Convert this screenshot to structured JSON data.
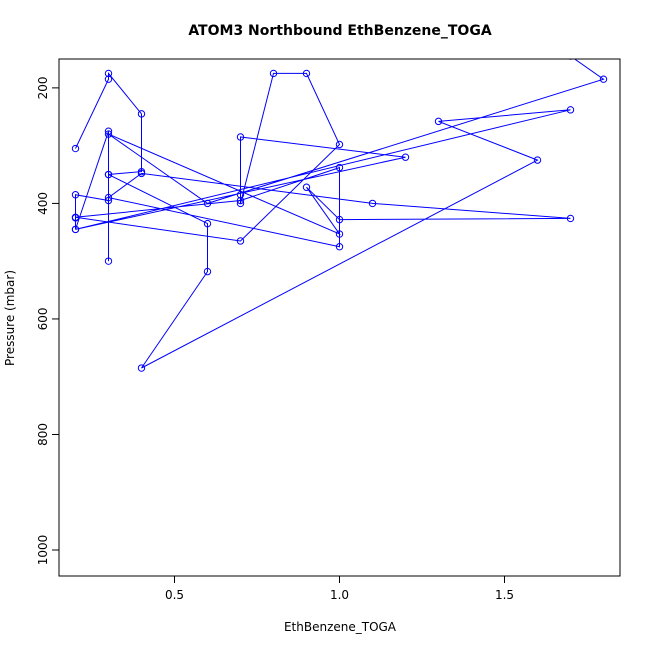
{
  "chart_data": {
    "type": "line",
    "title": "ATOM3 Northbound EthBenzene_TOGA",
    "xlabel": "EthBenzene_TOGA",
    "ylabel": "Pressure (mbar)",
    "xlim": [
      0.15,
      1.85
    ],
    "ylim": [
      1045,
      150
    ],
    "y_reversed": true,
    "x_ticks": [
      0.5,
      1.0,
      1.5
    ],
    "x_tick_labels": [
      "0.5",
      "1.0",
      "1.5"
    ],
    "y_ticks": [
      200,
      400,
      600,
      800,
      1000
    ],
    "y_tick_labels": [
      "200",
      "400",
      "600",
      "800",
      "1000"
    ],
    "grid": false,
    "series": [
      {
        "color": "#0000ff",
        "marker": "open-circle",
        "x": [
          0.2,
          0.3,
          0.3,
          0.4,
          0.4,
          0.3,
          0.3,
          0.2,
          0.2,
          0.2,
          0.3,
          0.3,
          0.3,
          0.6,
          0.6,
          0.4,
          1.6,
          1.3,
          1.7,
          0.2,
          1.2,
          0.7,
          0.7,
          0.7,
          0.8,
          0.9,
          1.0,
          0.7,
          0.2,
          0.7,
          1.0,
          1.0,
          0.3,
          0.4,
          1.1,
          1.7,
          1.0,
          0.9,
          1.0,
          0.3,
          0.6,
          1.8,
          1.7,
          1.6
        ],
        "y": [
          305,
          185,
          175,
          245,
          345,
          350,
          395,
          385,
          425,
          445,
          275,
          500,
          350,
          435,
          518,
          685,
          325,
          258,
          238,
          445,
          320,
          285,
          385,
          400,
          175,
          175,
          298,
          465,
          424,
          395,
          338,
          475,
          390,
          348,
          400,
          426,
          428,
          372,
          453,
          280,
          400,
          185,
          145,
          140
        ]
      }
    ]
  }
}
